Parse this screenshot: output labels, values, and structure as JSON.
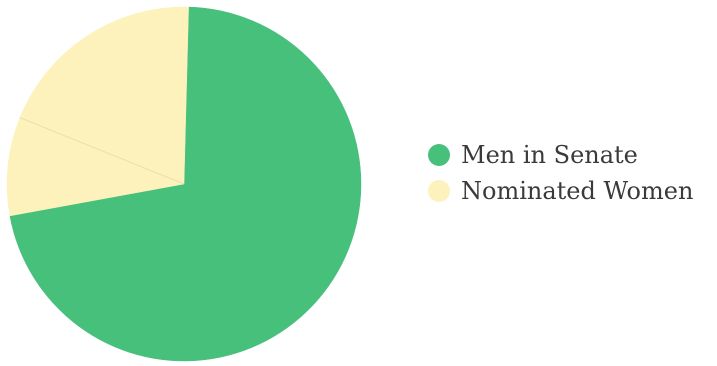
{
  "chart_data": {
    "type": "pie",
    "title": "",
    "legend_position": "right",
    "slices": [
      {
        "name": "Men in Senate",
        "value": 71.7,
        "color": "#46c07b"
      },
      {
        "name": "Nominated Women",
        "value": 28.3,
        "color": "#fdf1bc"
      }
    ],
    "sub_segments": [
      {
        "series": "Nominated Women",
        "value": 9.0
      },
      {
        "series": "Nominated Women",
        "value": 19.3
      }
    ]
  }
}
